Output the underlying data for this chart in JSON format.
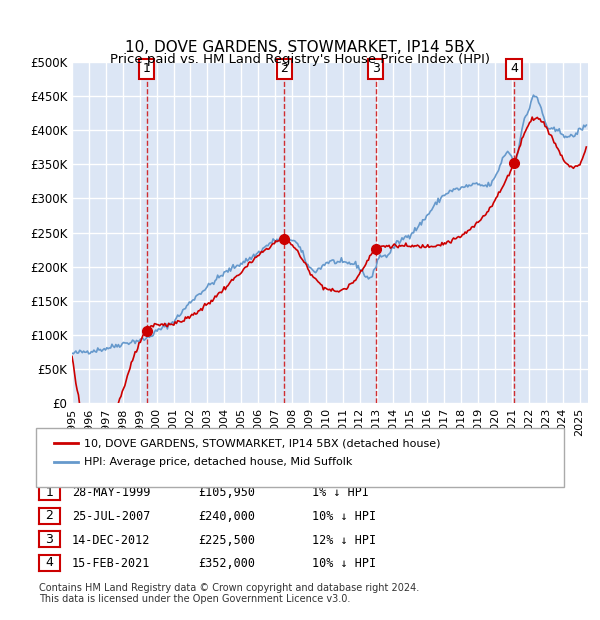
{
  "title": "10, DOVE GARDENS, STOWMARKET, IP14 5BX",
  "subtitle": "Price paid vs. HM Land Registry's House Price Index (HPI)",
  "ylabel_ticks": [
    "£0",
    "£50K",
    "£100K",
    "£150K",
    "£200K",
    "£250K",
    "£300K",
    "£350K",
    "£400K",
    "£450K",
    "£500K"
  ],
  "ytick_values": [
    0,
    50000,
    100000,
    150000,
    200000,
    250000,
    300000,
    350000,
    400000,
    450000,
    500000
  ],
  "ylim": [
    0,
    500000
  ],
  "xlim_start": 1995.0,
  "xlim_end": 2025.5,
  "bg_color": "#dce6f5",
  "plot_bg_color": "#dce6f5",
  "grid_color": "#ffffff",
  "sale_color": "#cc0000",
  "hpi_color": "#6699cc",
  "sale_marker_color": "#cc0000",
  "transactions": [
    {
      "id": 1,
      "date_label": "28-MAY-1999",
      "year": 1999.41,
      "price": 105950,
      "pct": "1%",
      "vline_x": 1999.41
    },
    {
      "id": 2,
      "date_label": "25-JUL-2007",
      "year": 2007.56,
      "price": 240000,
      "pct": "10%",
      "vline_x": 2007.56
    },
    {
      "id": 3,
      "date_label": "14-DEC-2012",
      "year": 2012.95,
      "price": 225500,
      "pct": "12%",
      "vline_x": 2012.95
    },
    {
      "id": 4,
      "date_label": "15-FEB-2021",
      "year": 2021.12,
      "price": 352000,
      "pct": "10%",
      "vline_x": 2021.12
    }
  ],
  "legend_entries": [
    "10, DOVE GARDENS, STOWMARKET, IP14 5BX (detached house)",
    "HPI: Average price, detached house, Mid Suffolk"
  ],
  "footer_text": "Contains HM Land Registry data © Crown copyright and database right 2024.\nThis data is licensed under the Open Government Licence v3.0.",
  "xtick_years": [
    1995,
    1996,
    1997,
    1998,
    1999,
    2000,
    2001,
    2002,
    2003,
    2004,
    2005,
    2006,
    2007,
    2008,
    2009,
    2010,
    2011,
    2012,
    2013,
    2014,
    2015,
    2016,
    2017,
    2018,
    2019,
    2020,
    2021,
    2022,
    2023,
    2024,
    2025
  ]
}
